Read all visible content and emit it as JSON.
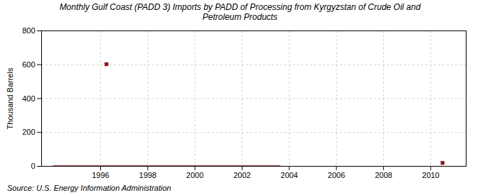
{
  "chart_data": {
    "type": "line",
    "title": "Monthly Gulf Coast (PADD 3) Imports by PADD of Processing from Kyrgyzstan of Crude Oil and\nPetroleum Products",
    "ylabel": "Thousand Barrels",
    "annotations": [
      "Source: U.S. Energy Information Administration"
    ],
    "series": [
      {
        "type": "line",
        "color": "#8B1A1A",
        "x": [
          1994.0,
          2003.6
        ],
        "values": [
          0,
          0
        ]
      },
      {
        "type": "scatter",
        "marker": "square",
        "color": "#8B1A1A",
        "x": [
          1996.25,
          2010.5
        ],
        "values": [
          603,
          20
        ]
      }
    ],
    "xlim": [
      1993.5,
      2011.5
    ],
    "ylim": [
      0,
      800
    ],
    "xticks": [
      1996,
      1998,
      2000,
      2002,
      2004,
      2006,
      2008,
      2010
    ],
    "yticks": [
      0,
      200,
      400,
      600,
      800
    ],
    "grid": true
  }
}
